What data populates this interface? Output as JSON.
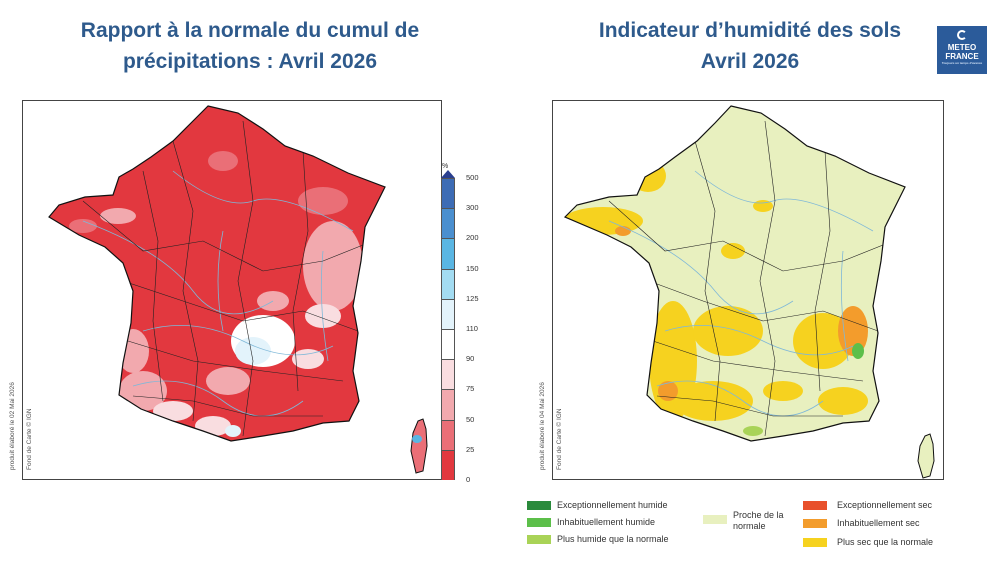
{
  "left": {
    "title_line1": "Rapport à la normale du cumul de",
    "title_line2": "précipitations : Avril 2026",
    "credit1": "produit élaboré le 02 Mai 2026",
    "credit2": "Fond de Carte © IGN",
    "scale_unit": "%",
    "scale": [
      {
        "label": "500",
        "color": "#2a3f8f"
      },
      {
        "label": "300",
        "color": "#3d6cb5"
      },
      {
        "label": "200",
        "color": "#4a8fcf"
      },
      {
        "label": "150",
        "color": "#5ab6e3"
      },
      {
        "label": "125",
        "color": "#a3dcf2"
      },
      {
        "label": "110",
        "color": "#e3f3fb"
      },
      {
        "label": "90",
        "color": "#ffffff"
      },
      {
        "label": "75",
        "color": "#f9dde0"
      },
      {
        "label": "50",
        "color": "#f2a9ae"
      },
      {
        "label": "25",
        "color": "#ea6f77"
      },
      {
        "label": "0",
        "color": "#e2383f"
      }
    ]
  },
  "right": {
    "title_line1": "Indicateur d’humidité des sols",
    "title_line2": "Avril 2026",
    "credit1": "produit élaboré le 04 Mai 2026",
    "credit2": "Fond de Carte © IGN",
    "legend": [
      {
        "label": "Exceptionnellement humide",
        "color": "#2a8a3c"
      },
      {
        "label": "Inhabituellement humide",
        "color": "#5cbf4a"
      },
      {
        "label": "Plus humide que la normale",
        "color": "#a9d357"
      },
      {
        "label": "Proche de la normale",
        "color": "#e8f0bf"
      },
      {
        "label": "Exceptionnellement sec",
        "color": "#e8502b"
      },
      {
        "label": "Inhabituellement sec",
        "color": "#f39c2c"
      },
      {
        "label": "Plus sec que la normale",
        "color": "#f6d21f"
      }
    ]
  },
  "logo": {
    "line1": "METEO",
    "line2": "FRANCE",
    "tagline": "Toujours un temps d'avance"
  }
}
